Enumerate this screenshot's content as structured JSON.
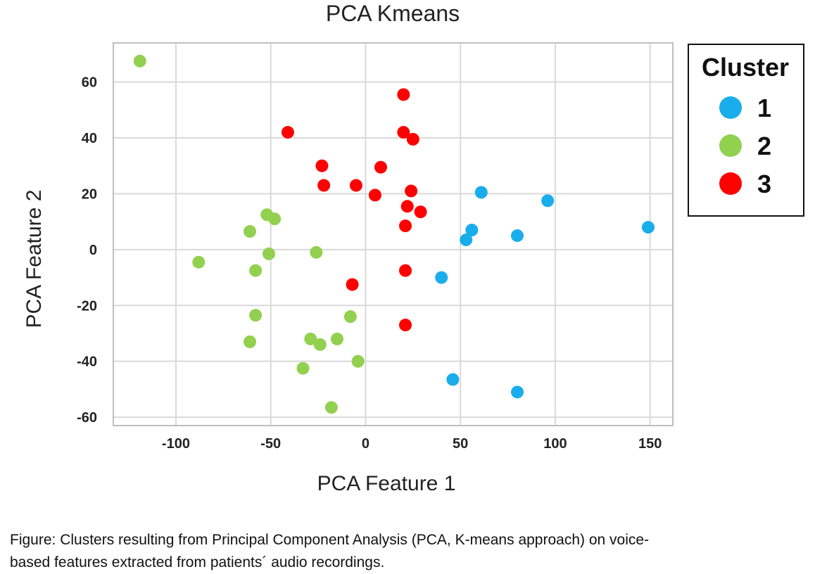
{
  "chart_data": {
    "type": "scatter",
    "title": "PCA Kmeans",
    "xlabel": "PCA Feature 1",
    "ylabel": "PCA Feature 2",
    "xlim": [
      -133,
      162
    ],
    "ylim": [
      -63,
      74
    ],
    "xticks": [
      -100,
      -50,
      0,
      50,
      100,
      150
    ],
    "yticks": [
      -60,
      -40,
      -20,
      0,
      20,
      40,
      60
    ],
    "grid": true,
    "legend": {
      "title": "Cluster",
      "placement": "right"
    },
    "series": [
      {
        "name": "1",
        "color": "#1AADEB",
        "points": [
          [
            61,
            20.5
          ],
          [
            96,
            17.5
          ],
          [
            149,
            8
          ],
          [
            56,
            7
          ],
          [
            80,
            5
          ],
          [
            53,
            3.5
          ],
          [
            40,
            -10
          ],
          [
            46,
            -46.5
          ],
          [
            80,
            -51
          ]
        ]
      },
      {
        "name": "2",
        "color": "#92D050",
        "points": [
          [
            -119,
            67.5
          ],
          [
            -52,
            12.5
          ],
          [
            -48,
            11
          ],
          [
            -61,
            6.5
          ],
          [
            -51,
            -1.5
          ],
          [
            -26,
            -1
          ],
          [
            -88,
            -4.5
          ],
          [
            -58,
            -7.5
          ],
          [
            -58,
            -23.5
          ],
          [
            -8,
            -24
          ],
          [
            -61,
            -33
          ],
          [
            -29,
            -32
          ],
          [
            -24,
            -34
          ],
          [
            -15,
            -32
          ],
          [
            -4,
            -40
          ],
          [
            -33,
            -42.5
          ],
          [
            -18,
            -56.5
          ]
        ]
      },
      {
        "name": "3",
        "color": "#FF0000",
        "points": [
          [
            20,
            55.5
          ],
          [
            -41,
            42
          ],
          [
            20,
            42
          ],
          [
            25,
            39.5
          ],
          [
            -23,
            30
          ],
          [
            8,
            29.5
          ],
          [
            -22,
            23
          ],
          [
            -5,
            23
          ],
          [
            24,
            21
          ],
          [
            5,
            19.5
          ],
          [
            22,
            15.5
          ],
          [
            29,
            13.5
          ],
          [
            21,
            8.5
          ],
          [
            21,
            -7.5
          ],
          [
            -7,
            -12.5
          ],
          [
            21,
            -27
          ]
        ]
      }
    ]
  },
  "caption": {
    "line1": "Figure: Clusters resulting from Principal Component Analysis (PCA, K-means approach) on voice-",
    "line2": "based features extracted from patients´ audio recordings."
  }
}
